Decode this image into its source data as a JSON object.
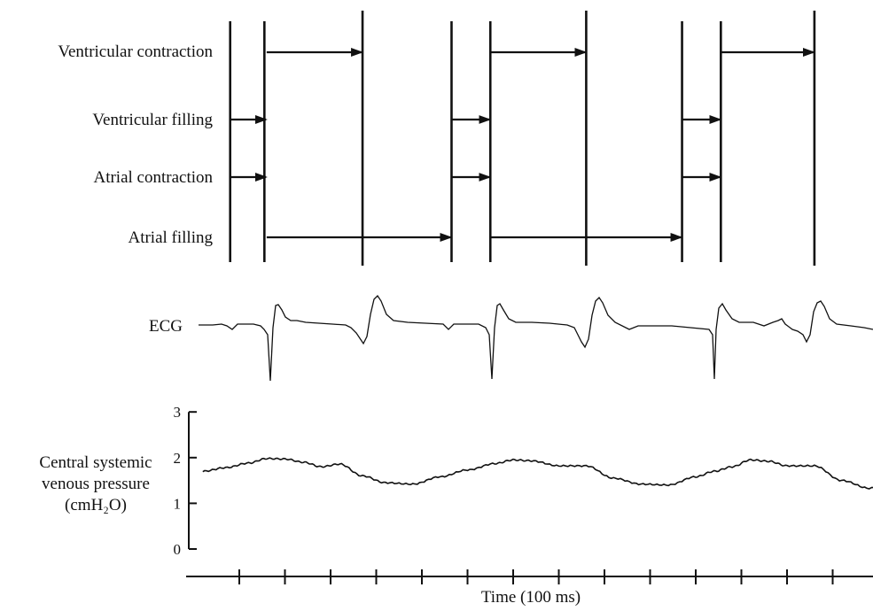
{
  "timing": {
    "rows": [
      {
        "label": "Ventricular contraction"
      },
      {
        "label": "Ventricular filling"
      },
      {
        "label": "Atrial contraction"
      },
      {
        "label": "Atrial filling"
      }
    ]
  },
  "ecg": {
    "label": "ECG"
  },
  "chart_data": {
    "type": "line",
    "title": "",
    "ylabel_lines": [
      "Central systemic",
      "venous pressure",
      "(cmH₂O)"
    ],
    "xlabel": "Time (100 ms)",
    "ylim": [
      0,
      3
    ],
    "yticks": [
      0,
      1,
      2,
      3
    ],
    "xlim": [
      -0.8,
      14.5
    ],
    "xticks": [
      0,
      1,
      2,
      3,
      4,
      5,
      6,
      7,
      8,
      9,
      10,
      11,
      12,
      13
    ],
    "grid": false,
    "series": [
      {
        "x": [
          -0.8,
          -0.3,
          0.2,
          0.6,
          1.0,
          1.4,
          1.8,
          2.2,
          2.7,
          3.2,
          3.8,
          4.4,
          5.0,
          5.6,
          6.0,
          6.4,
          7.0,
          7.6,
          8.2,
          8.8,
          9.4,
          10.0,
          10.4,
          10.8,
          11.2,
          11.6,
          12.0,
          12.6,
          13.2,
          13.8,
          14.5
        ],
        "y": [
          1.7,
          1.78,
          1.88,
          1.98,
          1.97,
          1.9,
          1.8,
          1.86,
          1.6,
          1.45,
          1.42,
          1.58,
          1.73,
          1.87,
          1.95,
          1.93,
          1.82,
          1.82,
          1.55,
          1.42,
          1.4,
          1.58,
          1.7,
          1.8,
          1.95,
          1.92,
          1.82,
          1.82,
          1.5,
          1.33,
          1.6
        ]
      }
    ],
    "timing_intervals": {
      "beat_onsets": [
        -0.2,
        0.55,
        4.65,
        5.5,
        9.7,
        10.55
      ],
      "ventricular_contraction": [
        [
          0.6,
          2.7
        ],
        [
          5.5,
          7.6
        ],
        [
          10.55,
          12.6
        ]
      ],
      "ventricular_filling": [
        [
          -0.2,
          0.6
        ],
        [
          4.65,
          5.5
        ],
        [
          9.7,
          10.55
        ]
      ],
      "atrial_contraction": [
        [
          -0.2,
          0.6
        ],
        [
          4.65,
          5.5
        ],
        [
          9.7,
          10.55
        ]
      ],
      "atrial_filling": [
        [
          0.6,
          4.65
        ],
        [
          5.5,
          9.7
        ]
      ]
    }
  }
}
